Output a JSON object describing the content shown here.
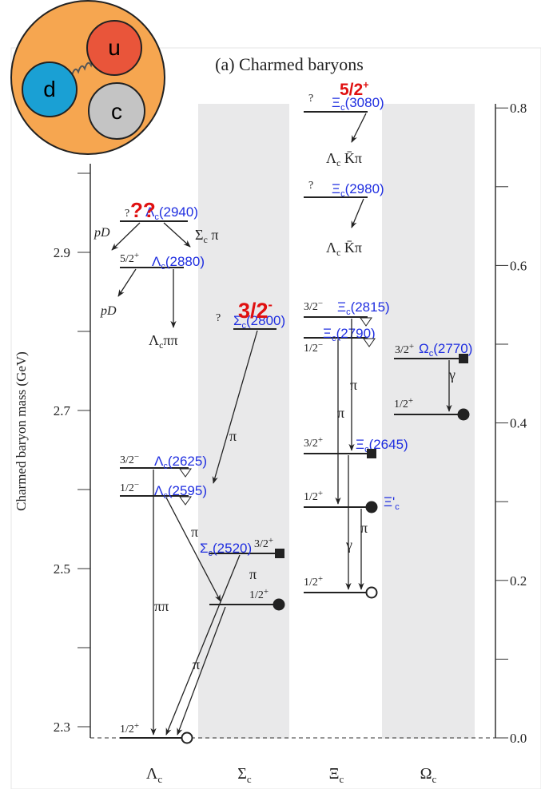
{
  "logo": {
    "quarks": [
      "u",
      "d",
      "c"
    ]
  },
  "title": "(a) Charmed baryons",
  "y_axis_label": "Charmed baryon mass  (GeV)",
  "left_ticks": [
    "2.3",
    "2.5",
    "2.7",
    "2.9"
  ],
  "right_ticks": [
    "0.0",
    "0.2",
    "0.4",
    "0.6",
    "0.8"
  ],
  "columns": [
    {
      "sym": "Λ",
      "sub": "c"
    },
    {
      "sym": "Σ",
      "sub": "c"
    },
    {
      "sym": "Ξ",
      "sub": "c"
    },
    {
      "sym": "Ω",
      "sub": "c"
    }
  ],
  "levels": [
    {
      "jp": {
        "j": "?"
      },
      "name": {
        "sym": "Λ",
        "sub": "c",
        "mass": "(2940)"
      }
    },
    {
      "jp": {
        "j": "5/2",
        "p": "+"
      },
      "name": {
        "sym": "Λ",
        "sub": "c",
        "mass": "(2880)"
      }
    },
    {
      "jp": {
        "j": "3/2",
        "p": "−"
      },
      "name": {
        "sym": "Λ",
        "sub": "c",
        "mass": "(2625)"
      }
    },
    {
      "jp": {
        "j": "1/2",
        "p": "−"
      },
      "name": {
        "sym": "Λ",
        "sub": "c",
        "mass": "(2595)"
      }
    },
    {
      "jp": {
        "j": "1/2",
        "p": "+"
      }
    },
    {
      "jp": {
        "j": "?"
      },
      "name": {
        "sym": "Σ",
        "sub": "c",
        "mass": "(2800)"
      }
    },
    {
      "jp": {
        "j": "3/2",
        "p": "+"
      },
      "name": {
        "sym": "Σ",
        "sub": "c",
        "mass": "(2520)"
      }
    },
    {
      "jp": {
        "j": "1/2",
        "p": "+"
      }
    },
    {
      "jp": {
        "j": "?"
      },
      "name": {
        "sym": "Ξ",
        "sub": "c",
        "mass": "(3080)"
      }
    },
    {
      "jp": {
        "j": "?"
      },
      "name": {
        "sym": "Ξ",
        "sub": "c",
        "mass": "(2980)"
      }
    },
    {
      "jp": {
        "j": "3/2",
        "p": "−"
      },
      "name": {
        "sym": "Ξ",
        "sub": "c",
        "mass": "(2815)"
      }
    },
    {
      "jp": {
        "j": "1/2",
        "p": "−"
      },
      "name": {
        "sym": "Ξ",
        "sub": "c",
        "mass": "(2790)"
      }
    },
    {
      "jp": {
        "j": "3/2",
        "p": "+"
      },
      "name": {
        "sym": "Ξ",
        "sub": "c",
        "mass": "(2645)"
      }
    },
    {
      "jp": {
        "j": "1/2",
        "p": "+"
      },
      "name": {
        "sym": "Ξ'",
        "sub": "c"
      }
    },
    {
      "jp": {
        "j": "1/2",
        "p": "+"
      }
    },
    {
      "jp": {
        "j": "3/2",
        "p": "+"
      },
      "name": {
        "sym": "Ω",
        "sub": "c",
        "mass": "(2770)"
      }
    },
    {
      "jp": {
        "j": "1/2",
        "p": "+"
      }
    }
  ],
  "annotations": [
    {
      "text": "??"
    },
    {
      "text": "3/2",
      "sup": "-"
    },
    {
      "text": "5/2",
      "sup": "+"
    }
  ],
  "decays": [
    {
      "a": "pD"
    },
    {
      "a": "Σ",
      "sub": "c",
      "b": " π"
    },
    {
      "a": "pD"
    },
    {
      "a": "Λ",
      "sub": "c",
      "b": "ππ"
    },
    {
      "a": "Λ",
      "sub": "c",
      "b": " K̄π"
    },
    {
      "a": "Λ",
      "sub": "c",
      "b": " K̄π"
    },
    {
      "a": "π"
    },
    {
      "a": "ππ"
    },
    {
      "a": "π"
    },
    {
      "a": "π"
    },
    {
      "a": "π"
    },
    {
      "a": "π"
    },
    {
      "a": "π"
    },
    {
      "a": "γ"
    },
    {
      "a": "π"
    },
    {
      "a": "γ"
    }
  ]
}
